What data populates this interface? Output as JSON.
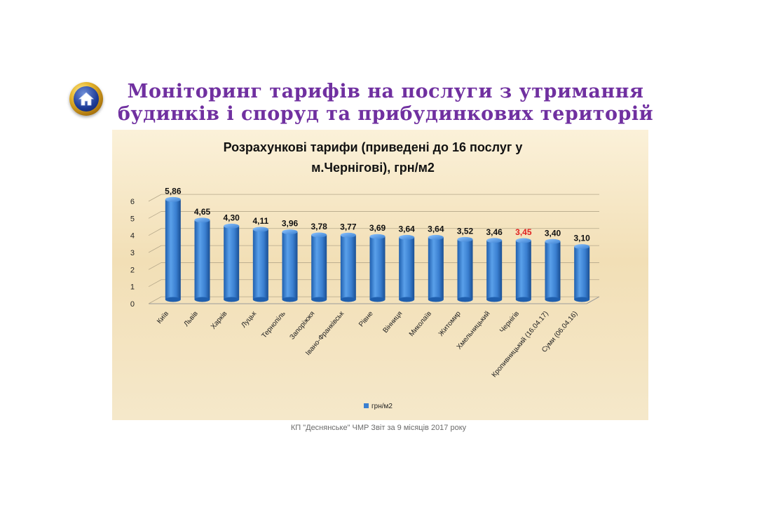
{
  "slide": {
    "title_line1": "Моніторинг тарифів на послуги з утримання",
    "title_line2": "будинків і споруд та прибудинкових територій",
    "footer": "КП \"Деснянське\" ЧМР Звіт за 9 місяців 2017 року"
  },
  "colors": {
    "title": "#7030a0",
    "bar": "#3a7fd0",
    "highlight_label": "#e02020"
  },
  "chart_data": {
    "type": "bar",
    "title_line1": "Розрахункові тарифи (приведені до 16 послуг у",
    "title_line2": "м.Чернігові), грн/м2",
    "categories": [
      "Київ",
      "Львів",
      "Харків",
      "Луцьк",
      "Тернопіль",
      "Запоріжжя",
      "Івано-Франківськ",
      "Рівне",
      "Вінниця",
      "Миколаїв",
      "Житомир",
      "Хмельницький",
      "Чернігів",
      "Кропивницький (16.04.17)",
      "Суми (06.04.16)"
    ],
    "series": [
      {
        "name": "грн/м2",
        "values": [
          5.86,
          4.65,
          4.3,
          4.11,
          3.96,
          3.78,
          3.77,
          3.69,
          3.64,
          3.64,
          3.52,
          3.46,
          3.45,
          3.4,
          3.1
        ],
        "labels": [
          "5,86",
          "4,65",
          "4,30",
          "4,11",
          "3,96",
          "3,78",
          "3,77",
          "3,69",
          "3,64",
          "3,64",
          "3,52",
          "3,46",
          "3,45",
          "3,40",
          "3,10"
        ]
      }
    ],
    "highlight_index": 12,
    "y_ticks": [
      "0",
      "1",
      "2",
      "3",
      "4",
      "5",
      "6"
    ],
    "ylim": [
      0,
      6
    ],
    "grid": true,
    "legend_position": "bottom"
  }
}
